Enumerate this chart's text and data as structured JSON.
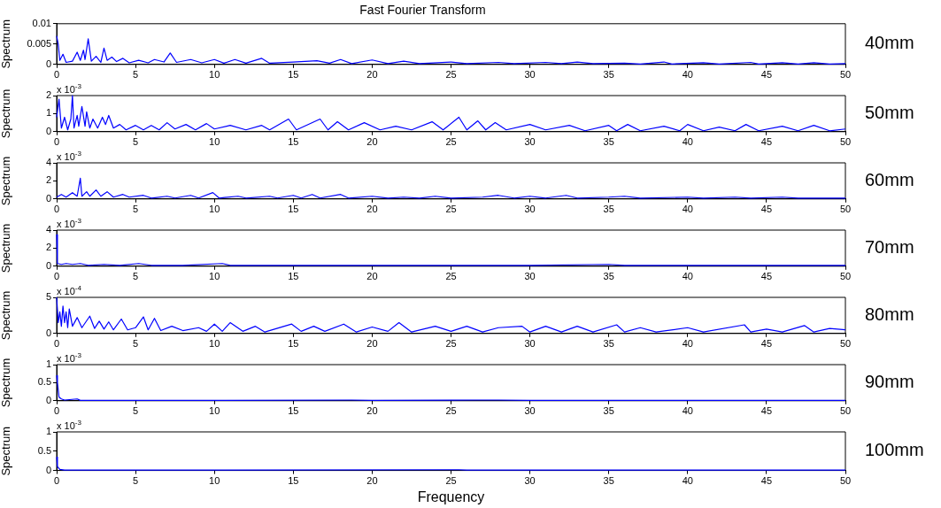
{
  "chart_data": [
    {
      "type": "line",
      "title": "Fast Fourier Transform",
      "ylabel": "Spectrum",
      "xlim": [
        0,
        50
      ],
      "xticks": [
        0,
        5,
        10,
        15,
        20,
        25,
        30,
        35,
        40,
        45,
        50
      ],
      "ylim": [
        0,
        0.01
      ],
      "yticks": [
        0,
        0.005,
        0.01
      ],
      "x": [
        0,
        0.1,
        0.2,
        0.4,
        0.6,
        1.0,
        1.3,
        1.5,
        1.7,
        1.8,
        2.0,
        2.2,
        2.5,
        2.8,
        3.0,
        3.2,
        3.5,
        3.8,
        4.2,
        4.6,
        5.2,
        5.8,
        6.2,
        6.8,
        7.2,
        7.6,
        8.5,
        9.2,
        10,
        10.6,
        11.3,
        12,
        13,
        13.5,
        15,
        16.5,
        17.3,
        18,
        18.7,
        20,
        21,
        22,
        23,
        25,
        26,
        28,
        29,
        31,
        32,
        33,
        34,
        36,
        37,
        38.5,
        39,
        41,
        42,
        44,
        44.5,
        46,
        47,
        48,
        49,
        50
      ],
      "series": [
        {
          "name": "40mm",
          "color": "#0000ff",
          "values": [
            0.007,
            0.005,
            0.001,
            0.0025,
            0.0005,
            0.0008,
            0.003,
            0.001,
            0.0035,
            0.0012,
            0.0063,
            0.0008,
            0.002,
            0.0005,
            0.004,
            0.001,
            0.0018,
            0.0007,
            0.0015,
            0.0004,
            0.001,
            0.0004,
            0.0012,
            0.0006,
            0.0028,
            0.0005,
            0.0012,
            0.0004,
            0.0012,
            0.0003,
            0.0012,
            0.0003,
            0.0015,
            0.0003,
            0.0006,
            0.0009,
            0.0003,
            0.0012,
            0.0002,
            0.0011,
            0.0002,
            0.0008,
            0.0002,
            0.0006,
            0.0002,
            0.0005,
            0.0002,
            0.0005,
            0.0002,
            0.0006,
            0.0002,
            0.0003,
            0.0001,
            0.0006,
            0.0001,
            0.0004,
            0.0001,
            0.0005,
            0.0001,
            0.0004,
            0.0001,
            0.0004,
            0.0001,
            0.0002
          ]
        }
      ]
    },
    {
      "type": "line",
      "ylabel": "Spectrum",
      "annotations": [
        "x 10$^{-3}$"
      ],
      "xlim": [
        0,
        50
      ],
      "xticks": [
        0,
        5,
        10,
        15,
        20,
        25,
        30,
        35,
        40,
        45,
        50
      ],
      "ylim": [
        0,
        2
      ],
      "yticks": [
        0,
        1,
        2
      ],
      "x": [
        0,
        0.15,
        0.3,
        0.5,
        0.7,
        0.9,
        1.0,
        1.1,
        1.3,
        1.4,
        1.6,
        1.8,
        1.9,
        2.1,
        2.3,
        2.6,
        2.9,
        3.1,
        3.3,
        3.6,
        4.0,
        4.4,
        5,
        5.5,
        6,
        6.5,
        7,
        7.5,
        8.2,
        8.8,
        9.5,
        10,
        11,
        12,
        13,
        13.5,
        14.7,
        15.2,
        16.7,
        17.2,
        17.8,
        18.5,
        19.5,
        20.5,
        21.5,
        22.5,
        23.8,
        24.5,
        25.5,
        26,
        26.7,
        27.2,
        27.8,
        28.5,
        30,
        31,
        32.5,
        33.5,
        35,
        35.5,
        36.2,
        37,
        38.5,
        39.5,
        40,
        41,
        42,
        43,
        43.7,
        44.5,
        46,
        47,
        48,
        49,
        50
      ],
      "series": [
        {
          "name": "50mm",
          "color": "#0000ff",
          "values": [
            0.8,
            1.8,
            0.2,
            0.8,
            0.1,
            0.7,
            2.0,
            0.2,
            0.9,
            0.3,
            1.4,
            0.3,
            1.1,
            0.2,
            0.7,
            0.2,
            0.8,
            0.4,
            0.9,
            0.2,
            0.4,
            0.1,
            0.35,
            0.1,
            0.35,
            0.1,
            0.5,
            0.15,
            0.4,
            0.1,
            0.45,
            0.15,
            0.35,
            0.1,
            0.35,
            0.1,
            0.7,
            0.1,
            0.7,
            0.1,
            0.55,
            0.1,
            0.5,
            0.1,
            0.3,
            0.1,
            0.55,
            0.1,
            0.8,
            0.1,
            0.6,
            0.1,
            0.5,
            0.1,
            0.4,
            0.1,
            0.35,
            0.05,
            0.35,
            0.05,
            0.4,
            0.05,
            0.3,
            0.05,
            0.4,
            0.05,
            0.25,
            0.05,
            0.4,
            0.05,
            0.3,
            0.05,
            0.35,
            0.05,
            0.15
          ]
        }
      ]
    },
    {
      "type": "line",
      "ylabel": "Spectrum",
      "annotations": [
        "x 10$^{-3}$"
      ],
      "xlim": [
        0,
        50
      ],
      "xticks": [
        0,
        5,
        10,
        15,
        20,
        25,
        30,
        35,
        40,
        45,
        50
      ],
      "ylim": [
        0,
        4
      ],
      "yticks": [
        0,
        2,
        4
      ],
      "x": [
        0,
        0.3,
        0.6,
        1.0,
        1.3,
        1.5,
        1.6,
        1.9,
        2.1,
        2.5,
        2.8,
        3.2,
        3.6,
        4.2,
        4.6,
        5.5,
        6,
        7,
        7.5,
        8.5,
        9,
        9.9,
        10.3,
        11.5,
        12,
        13.5,
        14,
        15,
        15.5,
        16.2,
        16.7,
        18,
        18.5,
        20,
        21,
        22,
        23,
        24,
        25,
        27,
        28,
        29,
        30,
        31,
        32.3,
        33,
        35,
        36,
        37,
        40,
        41,
        43,
        44,
        46,
        47,
        50
      ],
      "series": [
        {
          "name": "60mm",
          "color": "#0000ff",
          "values": [
            0.2,
            0.5,
            0.2,
            0.7,
            0.3,
            2.3,
            0.3,
            0.8,
            0.3,
            1.0,
            0.3,
            0.8,
            0.2,
            0.5,
            0.2,
            0.4,
            0.1,
            0.3,
            0.1,
            0.4,
            0.1,
            0.7,
            0.1,
            0.3,
            0.1,
            0.3,
            0.1,
            0.4,
            0.1,
            0.5,
            0.1,
            0.5,
            0.1,
            0.3,
            0.1,
            0.2,
            0.1,
            0.3,
            0.1,
            0.2,
            0.4,
            0.1,
            0.3,
            0.1,
            0.4,
            0.1,
            0.2,
            0.3,
            0.1,
            0.2,
            0.1,
            0.2,
            0.1,
            0.2,
            0.1,
            0.1
          ]
        }
      ]
    },
    {
      "type": "line",
      "ylabel": "Spectrum",
      "annotations": [
        "x 10$^{-3}$"
      ],
      "xlim": [
        0,
        50
      ],
      "xticks": [
        0,
        5,
        10,
        15,
        20,
        25,
        30,
        35,
        40,
        45,
        50
      ],
      "ylim": [
        0,
        4
      ],
      "yticks": [
        0,
        2,
        4
      ],
      "x": [
        0,
        0.05,
        0.3,
        0.6,
        1,
        1.5,
        2,
        3,
        4,
        5.2,
        6,
        8,
        10.5,
        11,
        15,
        20,
        25,
        30,
        35,
        36,
        40,
        45,
        50
      ],
      "series": [
        {
          "name": "70mm",
          "color": "#0000ff",
          "values": [
            3.5,
            0.3,
            0.2,
            0.3,
            0.2,
            0.3,
            0.1,
            0.2,
            0.1,
            0.3,
            0.1,
            0.1,
            0.3,
            0.1,
            0.1,
            0.1,
            0.1,
            0.1,
            0.2,
            0.1,
            0.1,
            0.1,
            0.1
          ]
        }
      ]
    },
    {
      "type": "line",
      "ylabel": "Spectrum",
      "annotations": [
        "x 10$^{-4}$"
      ],
      "xlim": [
        0,
        50
      ],
      "xticks": [
        0,
        5,
        10,
        15,
        20,
        25,
        30,
        35,
        40,
        45,
        50
      ],
      "ylim": [
        0,
        5
      ],
      "yticks": [
        0,
        5
      ],
      "x": [
        0,
        0.1,
        0.2,
        0.3,
        0.4,
        0.5,
        0.6,
        0.7,
        0.8,
        1.0,
        1.3,
        1.6,
        2.1,
        2.4,
        2.7,
        3.0,
        3.3,
        3.6,
        4.1,
        4.5,
        5,
        5.5,
        5.8,
        6.2,
        6.6,
        7.3,
        8,
        9,
        9.5,
        10,
        10.5,
        11,
        11.8,
        12.6,
        13.2,
        14.9,
        15.5,
        16.3,
        17,
        18.2,
        19,
        20,
        21,
        21.7,
        22.5,
        24,
        25,
        26,
        27,
        28,
        29.5,
        30,
        31,
        32,
        33,
        34,
        35.5,
        36,
        37,
        38,
        40,
        41,
        43.6,
        44,
        45,
        46,
        47.4,
        48,
        49,
        50
      ],
      "series": [
        {
          "name": "80mm",
          "color": "#0000ff",
          "values": [
            5.0,
            1.5,
            3.0,
            1.0,
            3.8,
            1.5,
            3.0,
            0.8,
            3.4,
            1.0,
            2.2,
            0.8,
            2.4,
            0.7,
            1.7,
            0.6,
            1.6,
            0.5,
            2.0,
            0.5,
            0.8,
            2.3,
            0.5,
            2.1,
            0.4,
            1.0,
            0.4,
            0.8,
            0.3,
            1.3,
            0.3,
            1.5,
            0.3,
            1.0,
            0.2,
            1.3,
            0.3,
            1.0,
            0.3,
            1.3,
            0.2,
            0.9,
            0.3,
            1.5,
            0.2,
            1.0,
            0.3,
            1.0,
            0.2,
            0.8,
            1.0,
            0.2,
            1.0,
            0.2,
            1.0,
            0.2,
            1.2,
            0.2,
            0.8,
            0.2,
            0.8,
            0.2,
            1.2,
            0.2,
            0.6,
            0.2,
            1.1,
            0.2,
            0.7,
            0.5
          ]
        }
      ]
    },
    {
      "type": "line",
      "ylabel": "Spectrum",
      "annotations": [
        "x 10$^{-3}$"
      ],
      "xlim": [
        0,
        50
      ],
      "xticks": [
        0,
        5,
        10,
        15,
        20,
        25,
        30,
        35,
        40,
        45,
        50
      ],
      "ylim": [
        0,
        1
      ],
      "yticks": [
        0,
        0.5,
        1
      ],
      "x": [
        0,
        0.05,
        0.15,
        0.3,
        0.5,
        1.3,
        1.5,
        5,
        10,
        18.7,
        20,
        26.6,
        28,
        30,
        40,
        50
      ],
      "series": [
        {
          "name": "90mm",
          "color": "#0000ff",
          "values": [
            0.7,
            0.5,
            0.1,
            0.05,
            0.02,
            0.05,
            0.01,
            0.01,
            0.01,
            0.02,
            0.01,
            0.02,
            0.02,
            0.01,
            0.01,
            0.01
          ]
        }
      ]
    },
    {
      "type": "line",
      "ylabel": "Spectrum",
      "xlabel": "Frequency",
      "annotations": [
        "x 10$^{-3}$"
      ],
      "xlim": [
        0,
        50
      ],
      "xticks": [
        0,
        5,
        10,
        15,
        20,
        25,
        30,
        35,
        40,
        45,
        50
      ],
      "ylim": [
        0,
        1
      ],
      "yticks": [
        0,
        0.5,
        1
      ],
      "x": [
        0,
        0.05,
        0.2,
        0.5,
        5,
        25.5,
        26,
        40,
        50
      ],
      "series": [
        {
          "name": "100mm",
          "color": "#0000ff",
          "values": [
            0.35,
            0.1,
            0.03,
            0.01,
            0.01,
            0.02,
            0.01,
            0.01,
            0.01
          ]
        }
      ]
    }
  ]
}
